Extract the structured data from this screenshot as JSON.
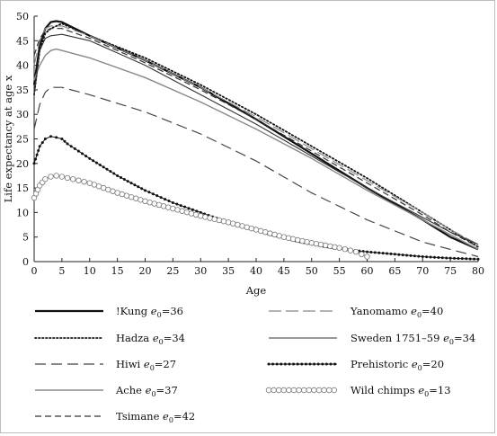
{
  "chart_data": {
    "type": "line",
    "xlabel": "Age",
    "ylabel": "Life expectancy at age x",
    "xlim": [
      0,
      80
    ],
    "ylim": [
      0,
      50
    ],
    "xticks": [
      "0",
      "5",
      "10",
      "15",
      "20",
      "25",
      "30",
      "35",
      "40",
      "45",
      "50",
      "55",
      "60",
      "65",
      "70",
      "75",
      "80"
    ],
    "yticks": [
      "0",
      "5",
      "10",
      "15",
      "20",
      "25",
      "30",
      "35",
      "40",
      "45",
      "50"
    ],
    "grid": false,
    "legend_position": "bottom",
    "series": [
      {
        "name": "!Kung e0=36",
        "label_main": "!Kung ",
        "e0": "36",
        "style": "thick-solid",
        "color": "#111111",
        "x": [
          0,
          1,
          2,
          3,
          4,
          5,
          10,
          20,
          30,
          40,
          50,
          60,
          70,
          75,
          80
        ],
        "y": [
          36,
          44,
          47.5,
          48.8,
          49,
          48.8,
          46,
          41,
          35.5,
          29,
          22,
          15,
          8.5,
          5,
          2.5
        ]
      },
      {
        "name": "Hadza e0=34",
        "label_main": "Hadza ",
        "e0": "34",
        "style": "dotted",
        "color": "#111111",
        "x": [
          0,
          1,
          2,
          3,
          5,
          10,
          20,
          30,
          40,
          50,
          60,
          70,
          75,
          80
        ],
        "y": [
          34,
          43,
          46.5,
          47.5,
          48.5,
          46,
          41.5,
          36,
          30,
          23.5,
          17,
          10,
          6.5,
          3
        ]
      },
      {
        "name": "Hiwi e0=27",
        "label_main": "Hiwi ",
        "e0": "27",
        "style": "long-dash",
        "color": "#444444",
        "x": [
          0,
          1,
          2,
          3,
          5,
          10,
          20,
          30,
          40,
          50,
          60,
          70,
          75,
          80
        ],
        "y": [
          27,
          32,
          34.5,
          35.5,
          35.5,
          34,
          30.5,
          26,
          20.5,
          14,
          8.5,
          4,
          2.5,
          1
        ]
      },
      {
        "name": "Ache e0=37",
        "label_main": "Ache ",
        "e0": "37",
        "style": "solid-gray",
        "color": "#888888",
        "x": [
          0,
          1,
          2,
          3,
          4,
          5,
          10,
          20,
          30,
          40,
          50,
          60,
          70,
          75,
          80
        ],
        "y": [
          37,
          40,
          42,
          43,
          43.3,
          43,
          41.5,
          37.5,
          32.5,
          27,
          21,
          14.5,
          8.5,
          5.5,
          2.5
        ]
      },
      {
        "name": "Tsimane e0=42",
        "label_main": "Tsimane ",
        "e0": "42",
        "style": "dash",
        "color": "#333333",
        "x": [
          0,
          1,
          2,
          3,
          5,
          10,
          20,
          30,
          40,
          50,
          60,
          70,
          75,
          80
        ],
        "y": [
          42,
          45.5,
          47,
          47.5,
          47.5,
          45.5,
          40.5,
          35,
          29,
          22.5,
          16,
          9.5,
          6,
          3
        ]
      },
      {
        "name": "Yanomamo e0=40",
        "label_main": "Yanomamo ",
        "e0": "40",
        "style": "long-dash-gray",
        "color": "#888888",
        "x": [
          0,
          1,
          2,
          3,
          5,
          10,
          20,
          30,
          40,
          50,
          60,
          70,
          75,
          80
        ],
        "y": [
          40,
          45,
          47.5,
          48,
          48,
          46,
          41,
          35.5,
          29.5,
          23,
          16.5,
          10,
          6.5,
          3.5
        ]
      },
      {
        "name": "Sweden 1751–59 e0=34",
        "label_main": "Sweden 1751–59 ",
        "e0": "34",
        "style": "solid",
        "color": "#333333",
        "x": [
          0,
          1,
          2,
          3,
          5,
          10,
          20,
          30,
          40,
          50,
          60,
          70,
          75,
          80
        ],
        "y": [
          34,
          43,
          45.5,
          46,
          46.3,
          45,
          40,
          34,
          28,
          21.5,
          15,
          9,
          6,
          3.5
        ]
      },
      {
        "name": "Prehistoric e0=20",
        "label_main": "Prehistoric ",
        "e0": "20",
        "style": "dot-markers",
        "color": "#111111",
        "x": [
          0,
          1,
          2,
          3,
          4,
          5,
          6,
          8,
          10,
          15,
          20,
          25,
          30,
          35,
          40,
          45,
          50,
          55,
          60,
          65,
          70,
          75,
          80
        ],
        "y": [
          20,
          23.5,
          25,
          25.5,
          25.3,
          25,
          24,
          22.5,
          21,
          17.5,
          14.5,
          12,
          10,
          8,
          6.3,
          4.8,
          3.5,
          2.6,
          2,
          1.5,
          1,
          0.7,
          0.5
        ]
      },
      {
        "name": "Wild chimps e0=13",
        "label_main": "Wild chimps ",
        "e0": "13",
        "style": "circle-markers",
        "color": "#777777",
        "x": [
          0,
          1,
          2,
          3,
          4,
          5,
          7,
          10,
          15,
          20,
          25,
          30,
          35,
          40,
          45,
          50,
          55,
          58,
          60
        ],
        "y": [
          13,
          15.5,
          16.8,
          17.3,
          17.5,
          17.3,
          16.8,
          16,
          14,
          12.3,
          10.8,
          9.3,
          8,
          6.5,
          5,
          3.8,
          2.8,
          2,
          1
        ]
      }
    ]
  }
}
